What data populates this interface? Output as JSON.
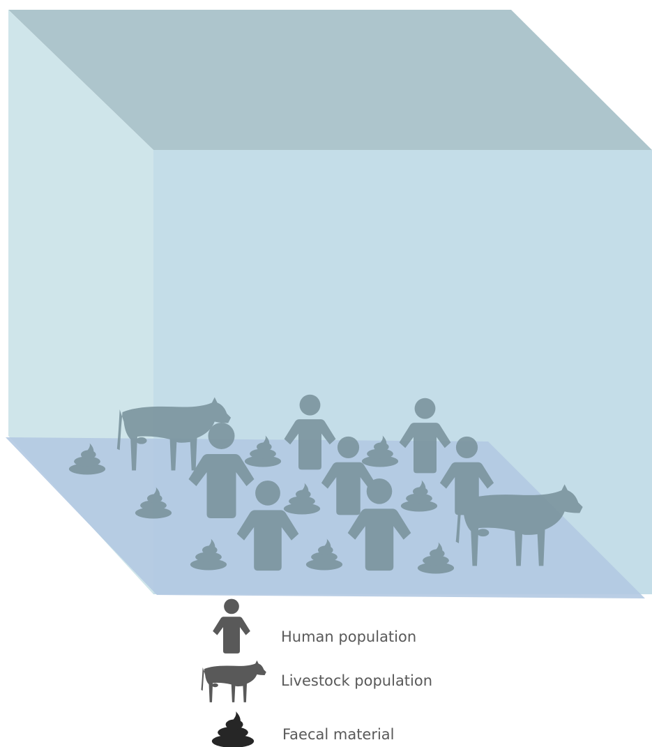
{
  "legend": [
    {
      "label": "Human population"
    },
    {
      "label": "Livestock population"
    },
    {
      "label": "Faecal material"
    }
  ]
}
